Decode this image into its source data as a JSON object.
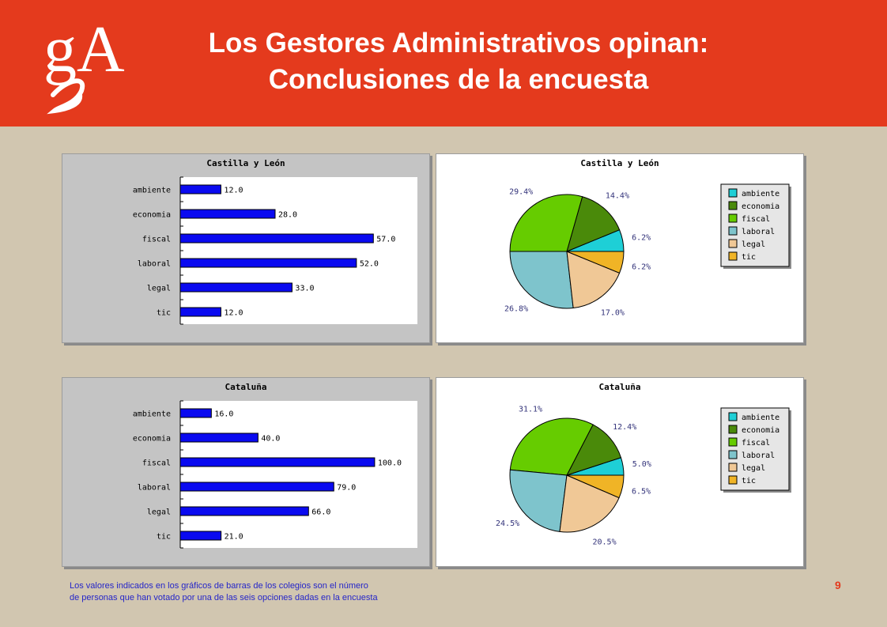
{
  "header": {
    "title_line1": "Los Gestores Administrativos opinan:",
    "title_line2": "Conclusiones de la encuesta",
    "logo_text": "gA"
  },
  "colors": {
    "header_bg": "#e43a1d",
    "page_bg": "#d1c6b0",
    "bar_fill": "#0a0af0",
    "ambiente": "#1ecfd6",
    "economia": "#4a8a0a",
    "fiscal": "#66cc00",
    "laboral": "#7ec4cc",
    "legal": "#f0c896",
    "tic": "#f0b426",
    "pie_label": "#33337a"
  },
  "chart_data": [
    {
      "type": "bar",
      "orientation": "horizontal",
      "title": "Castilla y León",
      "categories": [
        "ambiente",
        "economia",
        "fiscal",
        "laboral",
        "legal",
        "tic"
      ],
      "values": [
        12.0,
        28.0,
        57.0,
        52.0,
        33.0,
        12.0
      ],
      "value_labels": [
        "12.0",
        "28.0",
        "57.0",
        "52.0",
        "33.0",
        "12.0"
      ],
      "xlim": [
        0,
        70
      ]
    },
    {
      "type": "pie",
      "title": "Castilla y León",
      "categories": [
        "ambiente",
        "economia",
        "fiscal",
        "laboral",
        "legal",
        "tic"
      ],
      "values": [
        6.2,
        14.4,
        29.4,
        26.8,
        17.0,
        6.2
      ],
      "value_labels": [
        "6.2%",
        "14.4%",
        "29.4%",
        "26.8%",
        "17.0%",
        "6.2%"
      ],
      "legend": [
        "ambiente",
        "economia",
        "fiscal",
        "laboral",
        "legal",
        "tic"
      ],
      "legend_position": "right"
    },
    {
      "type": "bar",
      "orientation": "horizontal",
      "title": "Cataluña",
      "categories": [
        "ambiente",
        "economia",
        "fiscal",
        "laboral",
        "legal",
        "tic"
      ],
      "values": [
        16.0,
        40.0,
        100.0,
        79.0,
        66.0,
        21.0
      ],
      "value_labels": [
        "16.0",
        "40.0",
        "100.0",
        "79.0",
        "66.0",
        "21.0"
      ],
      "xlim": [
        0,
        122
      ]
    },
    {
      "type": "pie",
      "title": "Cataluña",
      "categories": [
        "ambiente",
        "economia",
        "fiscal",
        "laboral",
        "legal",
        "tic"
      ],
      "values": [
        5.0,
        12.4,
        31.1,
        24.5,
        20.5,
        6.5
      ],
      "value_labels": [
        "5.0%",
        "12.4%",
        "31.1%",
        "24.5%",
        "20.5%",
        "6.5%"
      ],
      "legend": [
        "ambiente",
        "economia",
        "fiscal",
        "laboral",
        "legal",
        "tic"
      ],
      "legend_position": "right"
    }
  ],
  "footnote": {
    "line1": "Los valores indicados en los gráficos de barras de los colegios son el número",
    "line2": "de personas que han votado por una de las seis opciones dadas en la encuesta"
  },
  "page_number": "9"
}
